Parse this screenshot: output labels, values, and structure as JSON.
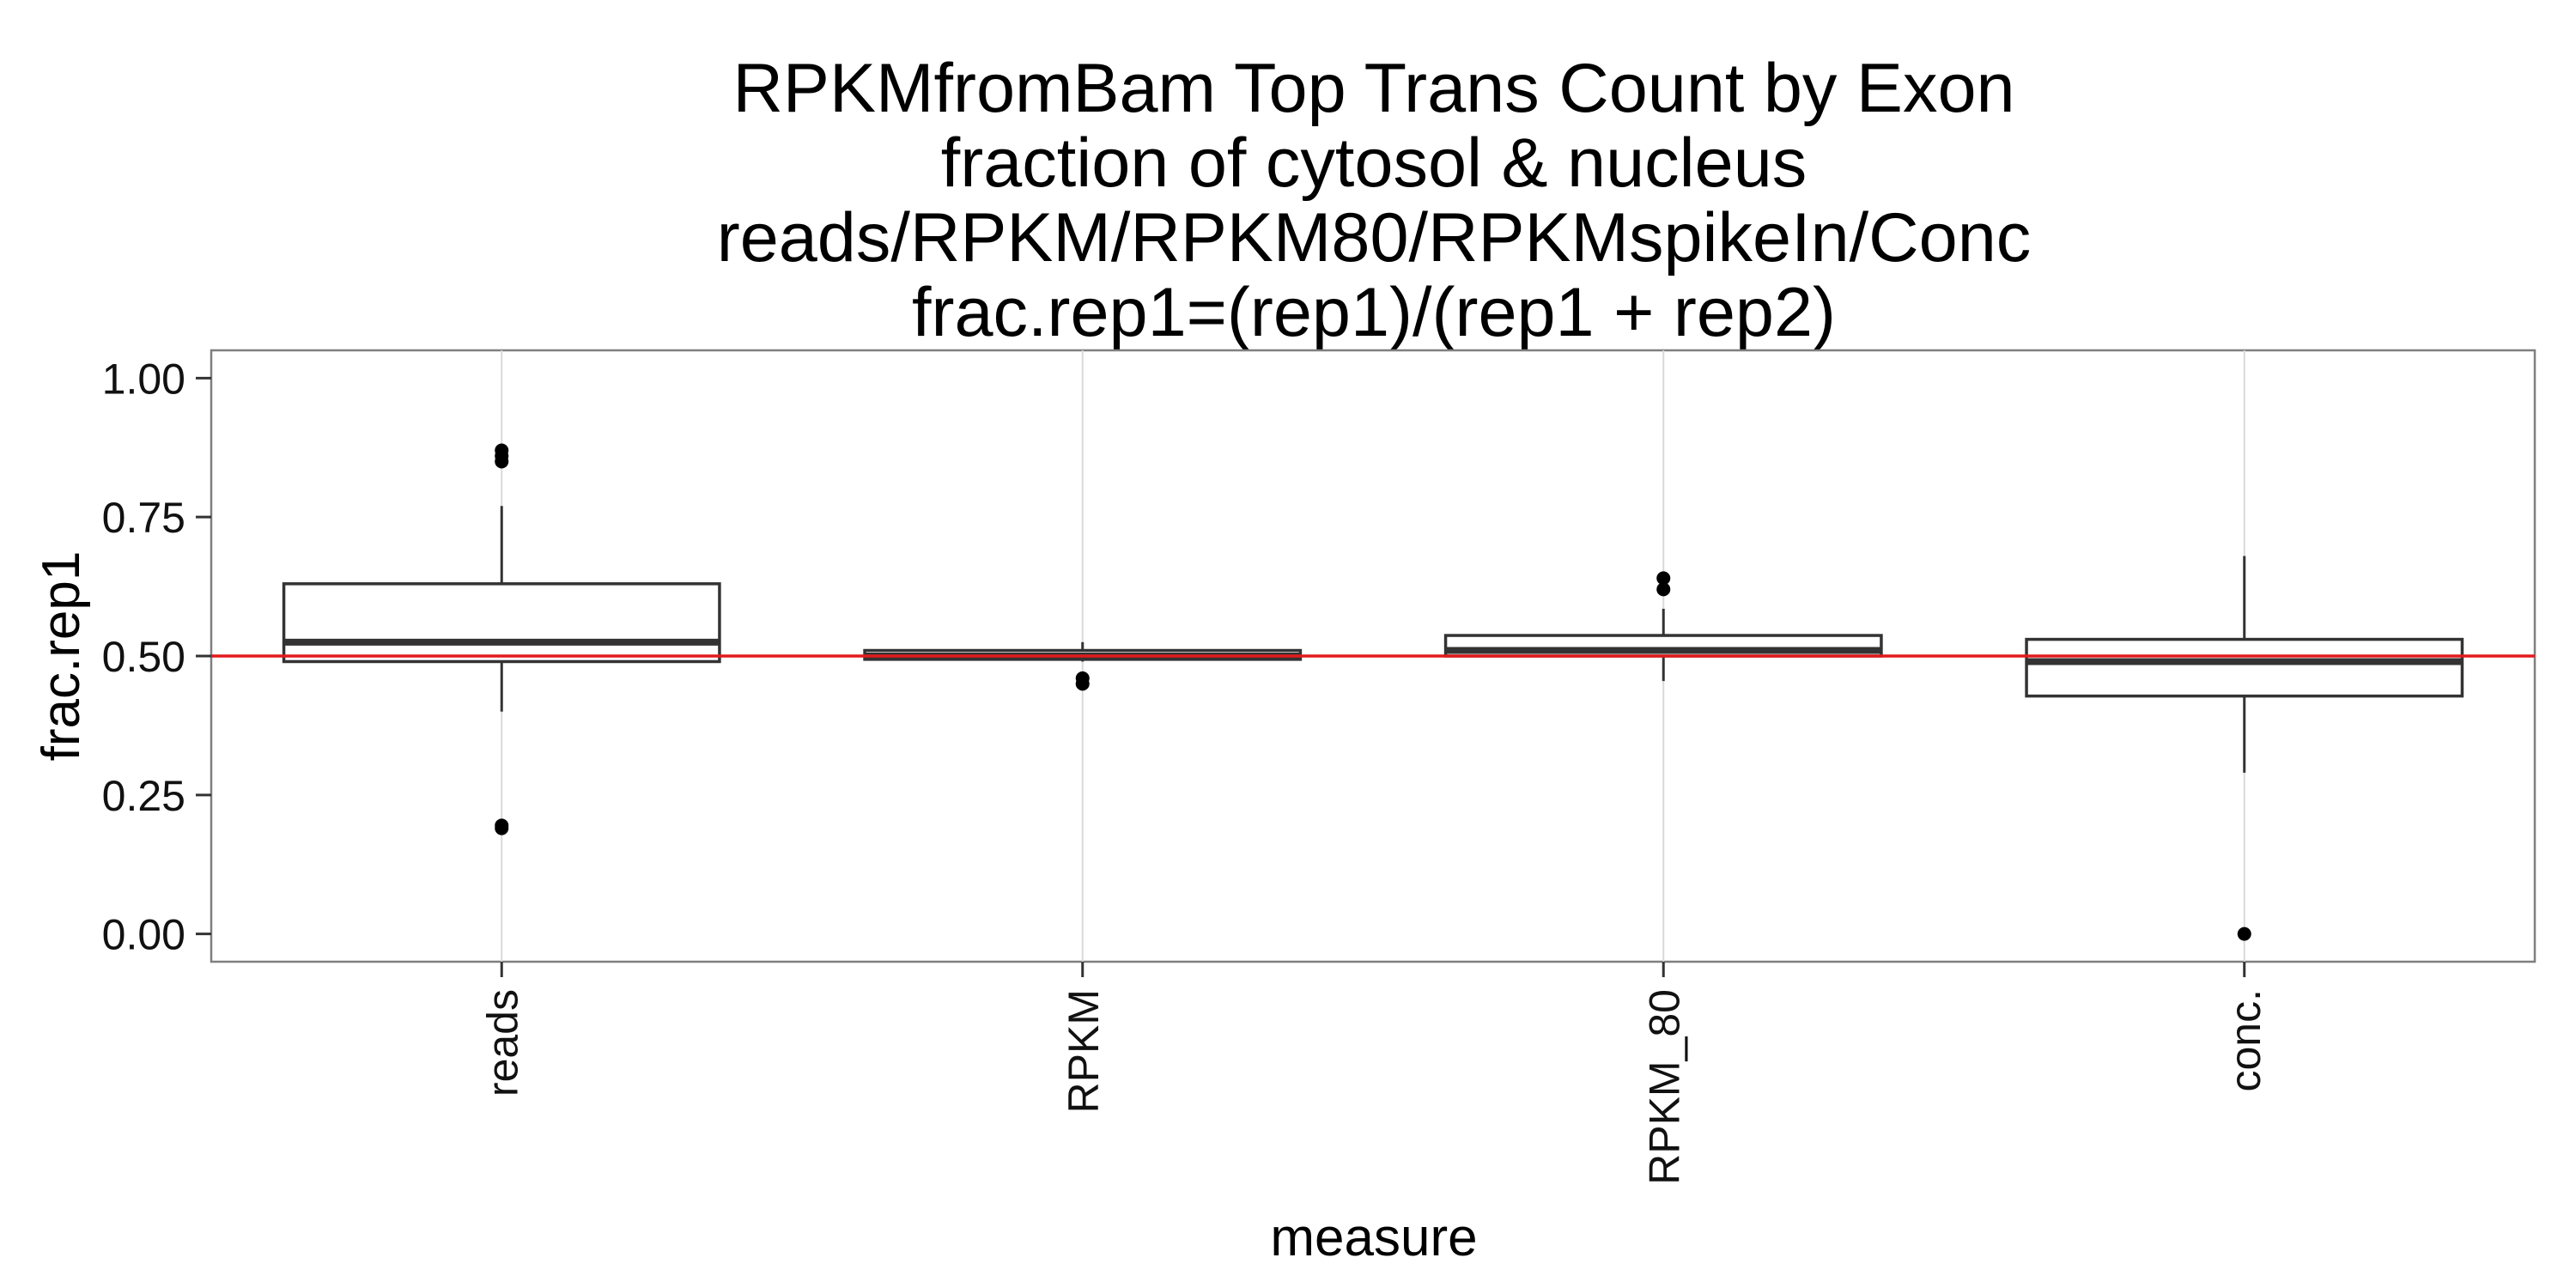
{
  "chart_data": {
    "type": "boxplot",
    "title": [
      "RPKMfromBam Top Trans Count by Exon",
      "fraction of cytosol & nucleus",
      "reads/RPKM/RPKM80/RPKMspikeIn/Conc",
      "frac.rep1=(rep1)/(rep1 + rep2)"
    ],
    "xlabel": "measure",
    "ylabel": "frac.rep1",
    "ylim": [
      -0.05,
      1.05
    ],
    "y_ticks": [
      1.0,
      0.75,
      0.5,
      0.25,
      0.0
    ],
    "y_tick_labels": [
      "1.00",
      "0.75",
      "0.50",
      "0.25",
      "0.00"
    ],
    "categories": [
      "reads",
      "RPKM",
      "RPKM_80",
      "conc."
    ],
    "boxes": [
      {
        "category": "reads",
        "whisker_low": 0.4,
        "q1": 0.49,
        "median": 0.525,
        "q3": 0.63,
        "whisker_high": 0.77,
        "outliers": [
          0.87,
          0.86,
          0.85,
          0.195,
          0.19
        ]
      },
      {
        "category": "RPKM",
        "whisker_low": 0.49,
        "q1": 0.494,
        "median": 0.5,
        "q3": 0.51,
        "whisker_high": 0.525,
        "outliers": [
          0.46,
          0.45
        ]
      },
      {
        "category": "RPKM_80",
        "whisker_low": 0.455,
        "q1": 0.5,
        "median": 0.51,
        "q3": 0.537,
        "whisker_high": 0.585,
        "outliers": [
          0.64,
          0.62
        ]
      },
      {
        "category": "conc.",
        "whisker_low": 0.29,
        "q1": 0.428,
        "median": 0.49,
        "q3": 0.53,
        "whisker_high": 0.68,
        "outliers": [
          0.0
        ]
      }
    ],
    "reference_line": {
      "y": 0.5,
      "color": "#e31a1c"
    },
    "panel_background": "#ffffff",
    "grid": true,
    "grid_color": "#d9d9d9",
    "box_color": "#333333"
  }
}
